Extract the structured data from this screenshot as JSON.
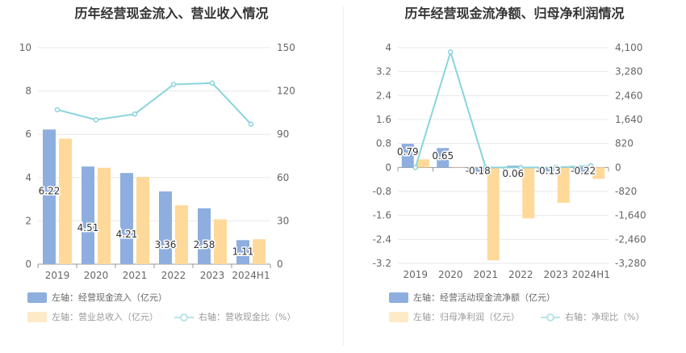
{
  "charts": [
    {
      "id": "left",
      "title": "历年经营现金流入、营业收入情况",
      "legend": {
        "left_bar": "左轴：经营现金流入（亿元）",
        "left_bar2": "左轴：营业总收入（亿元）",
        "right_line": "右轴：营收现金比（%）"
      }
    },
    {
      "id": "right",
      "title": "历年经营现金流净额、归母净利润情况",
      "legend": {
        "left_bar": "左轴：经营活动现金流净额（亿元）",
        "left_bar2": "左轴：归母净利润（亿元）",
        "right_line": "右轴：净现比（%）"
      }
    }
  ],
  "colors": {
    "blue_bar": "#8eaedf",
    "orange_bar": "#ffd99a",
    "line": "#8ad4dc",
    "grid": "#e8e8ee",
    "axis_text": "#666666"
  },
  "chart_data": [
    {
      "type": "bar",
      "title": "历年经营现金流入、营业收入情况",
      "categories": [
        "2019",
        "2020",
        "2021",
        "2022",
        "2023",
        "2024H1"
      ],
      "ylim_left": [
        0,
        10
      ],
      "yticks_left": [
        "0",
        "2",
        "4",
        "6",
        "8",
        "10"
      ],
      "ylim_right": [
        0,
        150
      ],
      "yticks_right": [
        "0",
        "30",
        "60",
        "90",
        "120",
        "150"
      ],
      "series": [
        {
          "name": "左轴：经营现金流入（亿元）",
          "axis": "left",
          "kind": "bar",
          "values": [
            6.22,
            4.51,
            4.21,
            3.36,
            2.58,
            1.11
          ],
          "labels": [
            "6.22",
            "4.51",
            "4.21",
            "3.36",
            "2.58",
            "1.11"
          ]
        },
        {
          "name": "左轴：营业总收入（亿元）",
          "axis": "left",
          "kind": "bar",
          "values": [
            5.8,
            4.45,
            4.03,
            2.72,
            2.07,
            1.15
          ]
        },
        {
          "name": "右轴：营收现金比（%）",
          "axis": "right",
          "kind": "line",
          "values": [
            107,
            100,
            104,
            124.5,
            125.5,
            97
          ]
        }
      ],
      "grid": true,
      "legend_position": "bottom"
    },
    {
      "type": "bar",
      "title": "历年经营现金流净额、归母净利润情况",
      "categories": [
        "2019",
        "2020",
        "2021",
        "2022",
        "2023",
        "2024H1"
      ],
      "ylim_left": [
        -3.2,
        4
      ],
      "yticks_left": [
        "-3.2",
        "-2.4",
        "-1.6",
        "-0.8",
        "0",
        "0.8",
        "1.6",
        "2.4",
        "3.2",
        "4"
      ],
      "ylim_right": [
        -3280,
        4100
      ],
      "yticks_right": [
        "-3,280",
        "-2,460",
        "-1,640",
        "-820",
        "0",
        "820",
        "1,640",
        "2,460",
        "3,280",
        "4,100"
      ],
      "series": [
        {
          "name": "左轴：经营活动现金流净额（亿元）",
          "axis": "left",
          "kind": "bar",
          "values": [
            0.79,
            0.65,
            -0.18,
            0.06,
            -0.13,
            -0.22
          ],
          "labels": [
            "0.79",
            "0.65",
            "-0.18",
            "0.06",
            "-0.13",
            "-0.22"
          ]
        },
        {
          "name": "左轴：归母净利润（亿元）",
          "axis": "left",
          "kind": "bar",
          "values": [
            0.27,
            0.01,
            -3.1,
            -1.7,
            -1.18,
            -0.38
          ]
        },
        {
          "name": "右轴：净现比（%）",
          "axis": "right",
          "kind": "line",
          "values": [
            0,
            3950,
            0,
            0,
            0,
            60
          ]
        }
      ],
      "grid": true,
      "legend_position": "bottom"
    }
  ]
}
